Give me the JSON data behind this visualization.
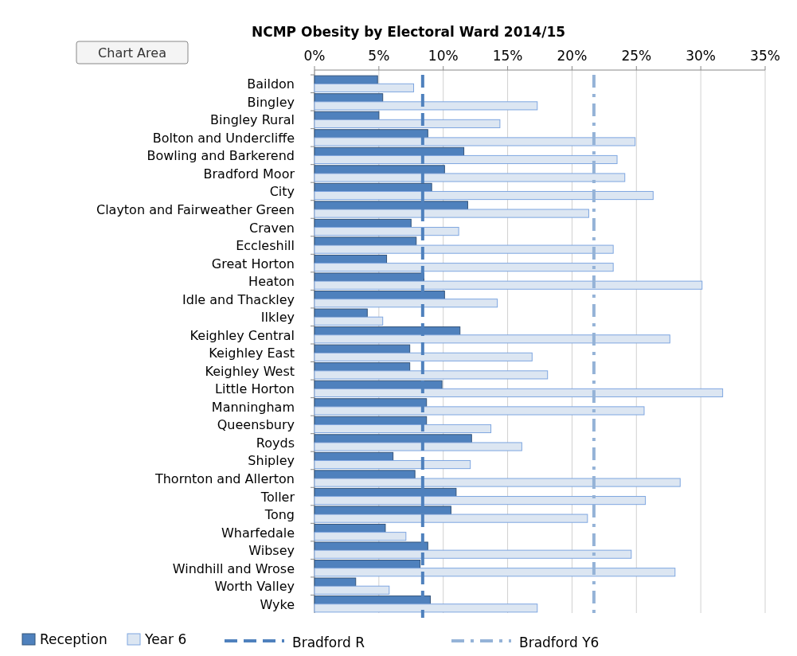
{
  "chart_data": {
    "type": "bar",
    "orientation": "horizontal",
    "title": "NCMP Obesity by Electoral Ward 2014/15",
    "categories": [
      "Baildon",
      "Bingley",
      "Bingley Rural",
      "Bolton and Undercliffe",
      "Bowling and Barkerend",
      "Bradford Moor",
      "City",
      "Clayton and Fairweather Green",
      "Craven",
      "Eccleshill",
      "Great Horton",
      "Heaton",
      "Idle and Thackley",
      "Ilkley",
      "Keighley Central",
      "Keighley East",
      "Keighley West",
      "Little Horton",
      "Manningham",
      "Queensbury",
      "Royds",
      "Shipley",
      "Thornton and Allerton",
      "Toller",
      "Tong",
      "Wharfedale",
      "Wibsey",
      "Windhill and Wrose",
      "Worth Valley",
      "Wyke"
    ],
    "series": [
      {
        "name": "Reception",
        "color": "#4f81bd",
        "values": [
          4.9,
          5.3,
          5.0,
          8.8,
          11.6,
          10.1,
          9.1,
          11.9,
          7.5,
          7.9,
          5.6,
          8.5,
          10.1,
          4.1,
          11.3,
          7.4,
          7.4,
          9.9,
          8.7,
          8.7,
          12.2,
          6.1,
          7.8,
          11.0,
          10.6,
          5.5,
          8.8,
          8.2,
          3.2,
          9.0
        ]
      },
      {
        "name": "Year 6",
        "color": "#dce6f2",
        "values": [
          7.7,
          17.3,
          14.4,
          24.9,
          23.5,
          24.1,
          26.3,
          21.3,
          11.2,
          23.2,
          23.2,
          30.1,
          14.2,
          5.3,
          27.6,
          16.9,
          18.1,
          31.7,
          25.6,
          13.7,
          16.1,
          12.1,
          28.4,
          25.7,
          21.2,
          7.1,
          24.6,
          28.0,
          5.8,
          17.3
        ]
      }
    ],
    "xlim": [
      0,
      35
    ],
    "xticks": [
      {
        "value": 0,
        "label": "0%"
      },
      {
        "value": 5,
        "label": "5%"
      },
      {
        "value": 10,
        "label": "10%"
      },
      {
        "value": 15,
        "label": "15%"
      },
      {
        "value": 20,
        "label": "20%"
      },
      {
        "value": 25,
        "label": "25%"
      },
      {
        "value": 30,
        "label": "30%"
      },
      {
        "value": 35,
        "label": "35%"
      }
    ],
    "grid": "x",
    "legend": "bottom",
    "ref_lines": [
      {
        "axis": "x",
        "value": 8.4,
        "label": "Bradford R",
        "color": "#4f81bd",
        "line_style": "dashed"
      },
      {
        "axis": "x",
        "value": 21.7,
        "label": "Bradford Y6",
        "color": "#95b3d7",
        "line_style": "dashdot"
      }
    ],
    "annotations": [
      "Chart Area"
    ]
  }
}
